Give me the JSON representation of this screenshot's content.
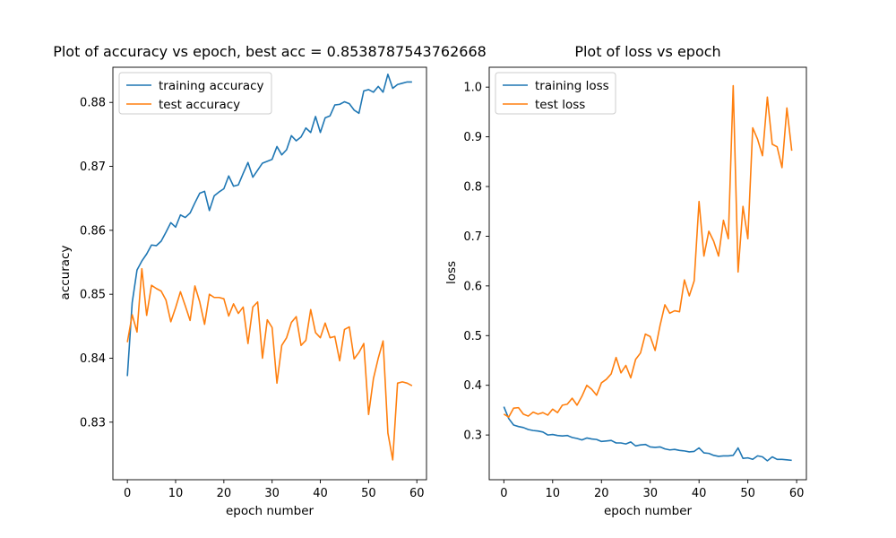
{
  "chart_data": [
    {
      "type": "line",
      "title": "Plot of accuracy vs epoch, best acc = 0.8538787543762668",
      "xlabel": "epoch number",
      "ylabel": "accuracy",
      "xlim": [
        -3,
        62
      ],
      "ylim": [
        0.821,
        0.8855
      ],
      "xticks": [
        0,
        10,
        20,
        30,
        40,
        50,
        60
      ],
      "yticks": [
        0.83,
        0.84,
        0.85,
        0.86,
        0.87,
        0.88
      ],
      "legend_position": "upper-left",
      "series": [
        {
          "name": "training accuracy",
          "color": "#1f77b4",
          "x": [
            0,
            1,
            2,
            3,
            4,
            5,
            6,
            7,
            8,
            9,
            10,
            11,
            12,
            13,
            14,
            15,
            16,
            17,
            18,
            19,
            20,
            21,
            22,
            23,
            24,
            25,
            26,
            27,
            28,
            29,
            30,
            31,
            32,
            33,
            34,
            35,
            36,
            37,
            38,
            39,
            40,
            41,
            42,
            43,
            44,
            45,
            46,
            47,
            48,
            49,
            50,
            51,
            52,
            53,
            54,
            55,
            56,
            57,
            58,
            59
          ],
          "values": [
            0.8372,
            0.8487,
            0.8538,
            0.8552,
            0.8563,
            0.8577,
            0.8576,
            0.8583,
            0.8597,
            0.8612,
            0.8605,
            0.8624,
            0.862,
            0.8627,
            0.8643,
            0.8658,
            0.8661,
            0.8631,
            0.8654,
            0.866,
            0.8665,
            0.8685,
            0.8669,
            0.8671,
            0.8689,
            0.8706,
            0.8683,
            0.8694,
            0.8705,
            0.8708,
            0.8711,
            0.8731,
            0.8718,
            0.8726,
            0.8748,
            0.874,
            0.8746,
            0.876,
            0.8753,
            0.8778,
            0.8753,
            0.8776,
            0.8779,
            0.8796,
            0.8797,
            0.8801,
            0.8798,
            0.8788,
            0.8783,
            0.8818,
            0.882,
            0.8816,
            0.8825,
            0.8816,
            0.8844,
            0.8822,
            0.8828,
            0.883,
            0.8832,
            0.8832
          ]
        },
        {
          "name": "test accuracy",
          "color": "#ff7f0e",
          "x": [
            0,
            1,
            2,
            3,
            4,
            5,
            6,
            7,
            8,
            9,
            10,
            11,
            12,
            13,
            14,
            15,
            16,
            17,
            18,
            19,
            20,
            21,
            22,
            23,
            24,
            25,
            26,
            27,
            28,
            29,
            30,
            31,
            32,
            33,
            34,
            35,
            36,
            37,
            38,
            39,
            40,
            41,
            42,
            43,
            44,
            45,
            46,
            47,
            48,
            49,
            50,
            51,
            52,
            53,
            54,
            55,
            56,
            57,
            58,
            59
          ],
          "values": [
            0.8425,
            0.8468,
            0.8441,
            0.854,
            0.8467,
            0.8514,
            0.8509,
            0.8505,
            0.8491,
            0.8457,
            0.8479,
            0.8504,
            0.8482,
            0.8459,
            0.8513,
            0.8488,
            0.8453,
            0.85,
            0.8495,
            0.8495,
            0.8493,
            0.8466,
            0.8485,
            0.847,
            0.848,
            0.8423,
            0.848,
            0.8488,
            0.84,
            0.846,
            0.8448,
            0.8361,
            0.842,
            0.8432,
            0.8456,
            0.8465,
            0.842,
            0.8428,
            0.8476,
            0.844,
            0.8432,
            0.8455,
            0.8432,
            0.8434,
            0.8396,
            0.8445,
            0.8449,
            0.8399,
            0.8409,
            0.8423,
            0.8312,
            0.8368,
            0.84,
            0.8427,
            0.8283,
            0.8241,
            0.8361,
            0.8363,
            0.8361,
            0.8357
          ]
        }
      ]
    },
    {
      "type": "line",
      "title": "Plot of loss vs epoch",
      "xlabel": "epoch number",
      "ylabel": "loss",
      "xlim": [
        -3,
        62
      ],
      "ylim": [
        0.21,
        1.04
      ],
      "xticks": [
        0,
        10,
        20,
        30,
        40,
        50,
        60
      ],
      "yticks": [
        0.3,
        0.4,
        0.5,
        0.6,
        0.7,
        0.8,
        0.9,
        1.0
      ],
      "legend_position": "upper-left",
      "series": [
        {
          "name": "training loss",
          "color": "#1f77b4",
          "x": [
            0,
            1,
            2,
            3,
            4,
            5,
            6,
            7,
            8,
            9,
            10,
            11,
            12,
            13,
            14,
            15,
            16,
            17,
            18,
            19,
            20,
            21,
            22,
            23,
            24,
            25,
            26,
            27,
            28,
            29,
            30,
            31,
            32,
            33,
            34,
            35,
            36,
            37,
            38,
            39,
            40,
            41,
            42,
            43,
            44,
            45,
            46,
            47,
            48,
            49,
            50,
            51,
            52,
            53,
            54,
            55,
            56,
            57,
            58,
            59
          ],
          "values": [
            0.357,
            0.333,
            0.32,
            0.317,
            0.315,
            0.311,
            0.309,
            0.308,
            0.306,
            0.3,
            0.301,
            0.299,
            0.298,
            0.299,
            0.295,
            0.293,
            0.29,
            0.294,
            0.292,
            0.291,
            0.287,
            0.288,
            0.289,
            0.284,
            0.284,
            0.282,
            0.286,
            0.278,
            0.28,
            0.281,
            0.276,
            0.275,
            0.276,
            0.272,
            0.27,
            0.271,
            0.269,
            0.268,
            0.266,
            0.267,
            0.274,
            0.264,
            0.263,
            0.259,
            0.257,
            0.258,
            0.258,
            0.259,
            0.274,
            0.253,
            0.254,
            0.251,
            0.258,
            0.256,
            0.248,
            0.256,
            0.251,
            0.251,
            0.25,
            0.249
          ]
        },
        {
          "name": "test loss",
          "color": "#ff7f0e",
          "x": [
            0,
            1,
            2,
            3,
            4,
            5,
            6,
            7,
            8,
            9,
            10,
            11,
            12,
            13,
            14,
            15,
            16,
            17,
            18,
            19,
            20,
            21,
            22,
            23,
            24,
            25,
            26,
            27,
            28,
            29,
            30,
            31,
            32,
            33,
            34,
            35,
            36,
            37,
            38,
            39,
            40,
            41,
            42,
            43,
            44,
            45,
            46,
            47,
            48,
            49,
            50,
            51,
            52,
            53,
            54,
            55,
            56,
            57,
            58,
            59
          ],
          "values": [
            0.342,
            0.336,
            0.354,
            0.355,
            0.342,
            0.338,
            0.346,
            0.342,
            0.345,
            0.34,
            0.352,
            0.345,
            0.36,
            0.362,
            0.374,
            0.36,
            0.378,
            0.4,
            0.392,
            0.38,
            0.405,
            0.412,
            0.423,
            0.456,
            0.425,
            0.44,
            0.415,
            0.452,
            0.465,
            0.503,
            0.498,
            0.47,
            0.52,
            0.562,
            0.545,
            0.55,
            0.548,
            0.612,
            0.58,
            0.61,
            0.77,
            0.66,
            0.71,
            0.69,
            0.66,
            0.732,
            0.695,
            1.003,
            0.628,
            0.76,
            0.695,
            0.918,
            0.895,
            0.862,
            0.98,
            0.885,
            0.88,
            0.838,
            0.958,
            0.872
          ]
        }
      ]
    }
  ]
}
